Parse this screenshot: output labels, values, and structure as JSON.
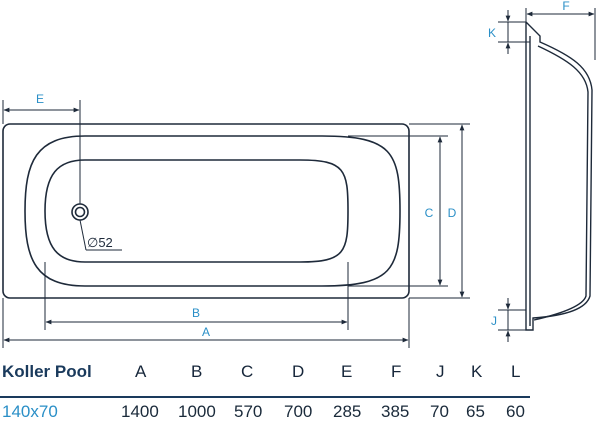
{
  "dimension_labels": {
    "A": "A",
    "B": "B",
    "C": "C",
    "D": "D",
    "E": "E",
    "F": "F",
    "J": "J",
    "K": "K"
  },
  "drain_label": "∅52",
  "table": {
    "model_header": "Koller Pool",
    "columns": [
      "A",
      "B",
      "C",
      "D",
      "E",
      "F",
      "J",
      "K",
      "L"
    ],
    "rows": [
      {
        "model": "140x70",
        "values": [
          "1400",
          "1000",
          "570",
          "700",
          "285",
          "385",
          "70",
          "65",
          "60"
        ]
      }
    ]
  },
  "colors": {
    "outline": "#1e2a3a",
    "dimension": "#2a8fc7",
    "rule": "#1a3a5c"
  }
}
